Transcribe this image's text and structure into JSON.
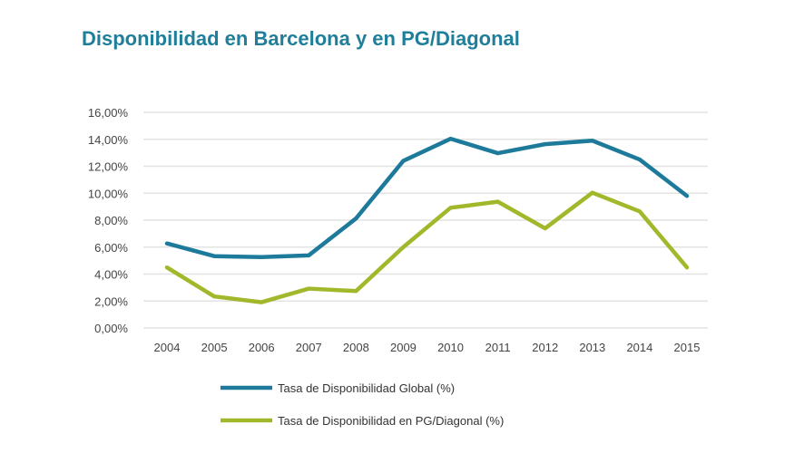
{
  "chart_data": {
    "type": "line",
    "title": "Disponibilidad en Barcelona y en PG/Diagonal",
    "xlabel": "",
    "ylabel": "",
    "categories": [
      "2004",
      "2005",
      "2006",
      "2007",
      "2008",
      "2009",
      "2010",
      "2011",
      "2012",
      "2013",
      "2014",
      "2015"
    ],
    "ylim": [
      0,
      16
    ],
    "yticks": [
      "0,00%",
      "2,00%",
      "4,00%",
      "6,00%",
      "8,00%",
      "10,00%",
      "12,00%",
      "14,00%",
      "16,00%"
    ],
    "grid": true,
    "legend_position": "bottom",
    "series": [
      {
        "name": "Tasa de Disponibilidad Global (%)",
        "color": "#1e7a9a",
        "values": [
          6.27,
          5.33,
          5.26,
          5.39,
          8.13,
          12.4,
          14.04,
          12.97,
          13.64,
          13.9,
          12.5,
          9.8
        ]
      },
      {
        "name": "Tasa de Disponibilidad en PG/Diagonal (%)",
        "color": "#a3b72a",
        "values": [
          4.49,
          2.34,
          1.91,
          2.92,
          2.74,
          6.0,
          8.92,
          9.37,
          7.39,
          10.04,
          8.65,
          4.49
        ]
      }
    ]
  }
}
